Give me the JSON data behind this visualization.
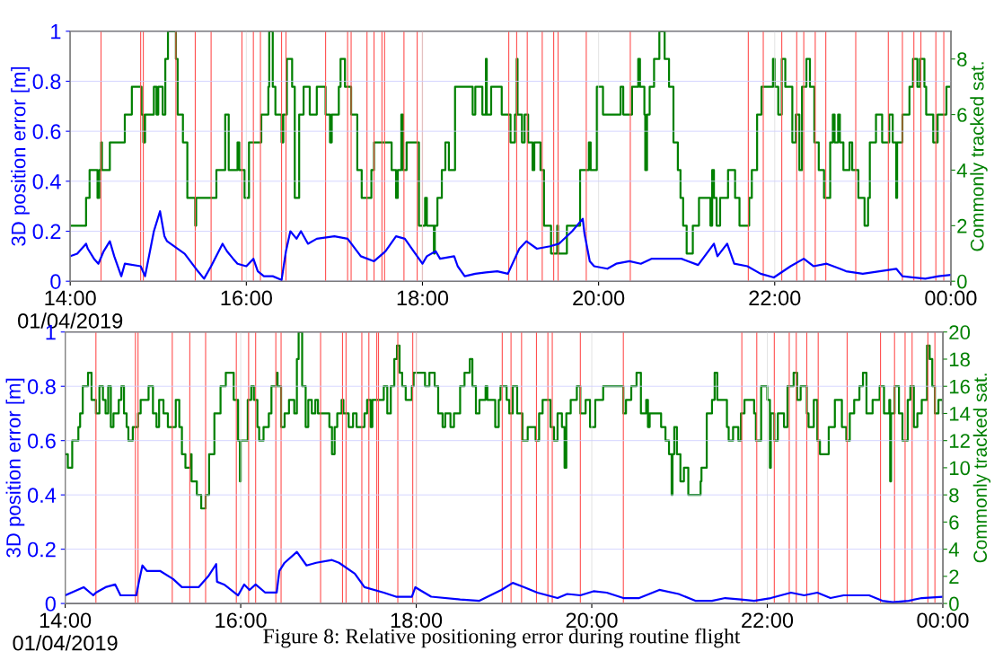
{
  "chart_data": [
    {
      "type": "line",
      "ylabel": "3D position error [m]",
      "y2label": "Commonly tracked sat.",
      "xlim": [
        14,
        24
      ],
      "xticks": [
        {
          "value": 14,
          "label": "14:00\n01/04/2019"
        },
        {
          "value": 16,
          "label": "16:00"
        },
        {
          "value": 18,
          "label": "18:00"
        },
        {
          "value": 20,
          "label": "20:00"
        },
        {
          "value": 22,
          "label": "22:00"
        },
        {
          "value": 24,
          "label": "00:00"
        }
      ],
      "ylim": [
        0,
        1
      ],
      "yticks": [
        0,
        0.2,
        0.4,
        0.6,
        0.8,
        1
      ],
      "y2lim": [
        0,
        9
      ],
      "y2ticks": [
        0,
        2,
        4,
        6,
        8
      ],
      "grid": true,
      "series": [
        {
          "color": "#0000ff",
          "x": [
            14.0,
            14.08,
            14.18,
            14.2,
            14.27,
            14.32,
            14.38,
            14.45,
            14.5,
            14.58,
            14.62,
            14.8,
            14.85,
            14.95,
            15.02,
            15.07,
            15.1,
            15.3,
            15.45,
            15.52,
            15.6,
            15.73,
            15.78,
            15.85,
            15.9,
            16.0,
            16.08,
            16.13,
            16.2,
            16.3,
            16.4,
            16.45,
            16.5,
            16.57,
            16.62,
            16.7,
            16.8,
            17.0,
            17.15,
            17.3,
            17.45,
            17.58,
            17.7,
            17.8,
            17.9,
            18.0,
            18.05,
            18.15,
            18.2,
            18.36,
            18.4,
            18.48,
            18.6,
            18.72,
            18.85,
            18.97,
            19.1,
            19.18,
            19.3,
            19.45,
            19.55,
            19.7,
            19.82,
            19.84,
            19.9,
            19.95,
            20.1,
            20.2,
            20.35,
            20.48,
            20.6,
            20.8,
            20.94,
            21.13,
            21.31,
            21.35,
            21.46,
            21.54,
            21.69,
            21.84,
            21.99,
            22.18,
            22.33,
            22.44,
            22.59,
            22.74,
            22.81,
            23.0,
            23.19,
            23.38,
            23.45,
            23.71,
            23.86,
            24.0
          ],
          "values": [
            0.1,
            0.11,
            0.15,
            0.13,
            0.09,
            0.07,
            0.12,
            0.16,
            0.1,
            0.02,
            0.07,
            0.06,
            0.02,
            0.2,
            0.28,
            0.18,
            0.16,
            0.11,
            0.04,
            0.01,
            0.06,
            0.15,
            0.12,
            0.09,
            0.07,
            0.06,
            0.09,
            0.04,
            0.02,
            0.02,
            0.005,
            0.12,
            0.2,
            0.17,
            0.2,
            0.15,
            0.17,
            0.18,
            0.17,
            0.1,
            0.08,
            0.12,
            0.18,
            0.17,
            0.12,
            0.07,
            0.1,
            0.12,
            0.09,
            0.1,
            0.06,
            0.02,
            0.03,
            0.035,
            0.04,
            0.03,
            0.13,
            0.16,
            0.13,
            0.14,
            0.15,
            0.2,
            0.25,
            0.19,
            0.08,
            0.06,
            0.05,
            0.07,
            0.08,
            0.07,
            0.09,
            0.09,
            0.09,
            0.065,
            0.15,
            0.1,
            0.15,
            0.07,
            0.06,
            0.03,
            0.015,
            0.06,
            0.09,
            0.06,
            0.07,
            0.05,
            0.04,
            0.03,
            0.04,
            0.05,
            0.02,
            0.01,
            0.02,
            0.025
          ]
        },
        {
          "type": "step",
          "axis": "y2",
          "color": "#008000",
          "x": [
            14.0,
            14.18,
            14.22,
            14.31,
            14.33,
            14.35,
            14.36,
            14.45,
            14.62,
            14.7,
            14.81,
            14.83,
            14.85,
            14.95,
            14.98,
            15.0,
            15.05,
            15.08,
            15.11,
            15.2,
            15.22,
            15.28,
            15.33,
            15.42,
            15.43,
            15.66,
            15.76,
            15.8,
            15.9,
            15.92,
            15.98,
            16.03,
            16.17,
            16.25,
            16.26,
            16.3,
            16.33,
            16.4,
            16.42,
            16.46,
            16.52,
            16.55,
            16.6,
            16.65,
            16.72,
            16.8,
            16.9,
            16.95,
            16.97,
            17.05,
            17.07,
            17.12,
            17.19,
            17.26,
            17.31,
            17.42,
            17.45,
            17.65,
            17.7,
            17.72,
            17.76,
            17.78,
            17.82,
            17.96,
            18.03,
            18.05,
            18.13,
            18.14,
            18.17,
            18.22,
            18.26,
            18.3,
            18.37,
            18.57,
            18.6,
            18.68,
            18.72,
            18.73,
            18.78,
            18.9,
            19.0,
            19.05,
            19.07,
            19.08,
            19.13,
            19.16,
            19.2,
            19.25,
            19.27,
            19.34,
            19.38,
            19.46,
            19.53,
            19.54,
            19.64,
            19.79,
            19.89,
            19.91,
            19.98,
            20.05,
            20.15,
            20.25,
            20.28,
            20.38,
            20.45,
            20.47,
            20.52,
            20.53,
            20.55,
            20.58,
            20.63,
            20.69,
            20.75,
            20.8,
            20.85,
            20.9,
            20.93,
            20.96,
            21.0,
            21.07,
            21.14,
            21.27,
            21.29,
            21.31,
            21.34,
            21.38,
            21.47,
            21.55,
            21.6,
            21.71,
            21.74,
            21.8,
            21.85,
            21.98,
            22.0,
            22.04,
            22.08,
            22.12,
            22.2,
            22.24,
            22.28,
            22.31,
            22.36,
            22.4,
            22.45,
            22.5,
            22.56,
            22.63,
            22.66,
            22.68,
            22.72,
            22.74,
            22.78,
            22.85,
            22.88,
            22.95,
            23.02,
            23.06,
            23.08,
            23.15,
            23.22,
            23.3,
            23.34,
            23.38,
            23.39,
            23.45,
            23.53,
            23.57,
            23.62,
            23.65,
            23.7,
            23.72,
            23.8,
            23.85,
            23.95,
            24.0
          ],
          "values": [
            2,
            3,
            4,
            3,
            4,
            5,
            4,
            5,
            6,
            7,
            6,
            5,
            6,
            7,
            6,
            7,
            6,
            8,
            9,
            8,
            6,
            5,
            3,
            2,
            3,
            4,
            6,
            4,
            5,
            4,
            3,
            5,
            6,
            7,
            9,
            7,
            6,
            5,
            6,
            8,
            7,
            3,
            6,
            7,
            6,
            7,
            6,
            5,
            6,
            7,
            8,
            7,
            6,
            4,
            3,
            4,
            5,
            4,
            3,
            4,
            6,
            4,
            5,
            2,
            3,
            2,
            1,
            2,
            3,
            4,
            5,
            4,
            7,
            6,
            7,
            6,
            8,
            6,
            7,
            6,
            5,
            6,
            8,
            6,
            5,
            6,
            5,
            4,
            5,
            4,
            2,
            1,
            2,
            1,
            2,
            4,
            5,
            4,
            7,
            6,
            6,
            7,
            6,
            7,
            8,
            7,
            6,
            4,
            6,
            7,
            8,
            9,
            8,
            7,
            5,
            4,
            3,
            2,
            1,
            2,
            3,
            2,
            4,
            3,
            2,
            3,
            4,
            3,
            2,
            3,
            4,
            6,
            7,
            8,
            7,
            6,
            8,
            7,
            5,
            6,
            4,
            7,
            8,
            7,
            5,
            4,
            3,
            5,
            6,
            5,
            6,
            5,
            4,
            5,
            4,
            3,
            2,
            3,
            5,
            6,
            5,
            6,
            5,
            3,
            5,
            6,
            7,
            8,
            7,
            8,
            7,
            6,
            5,
            6,
            7,
            7
          ]
        }
      ],
      "ref_lines": [
        {
          "axis": "x",
          "value": 14.35,
          "color": "#ff5050"
        },
        {
          "axis": "x",
          "value": 14.8,
          "color": "#ff5050"
        },
        {
          "axis": "x",
          "value": 14.83,
          "color": "#ff5050"
        },
        {
          "axis": "x",
          "value": 15.2,
          "color": "#ff5050"
        },
        {
          "axis": "x",
          "value": 15.42,
          "color": "#ff5050"
        },
        {
          "axis": "x",
          "value": 15.6,
          "color": "#ff5050"
        },
        {
          "axis": "x",
          "value": 15.95,
          "color": "#ff5050"
        },
        {
          "axis": "x",
          "value": 16.08,
          "color": "#ff5050"
        },
        {
          "axis": "x",
          "value": 16.16,
          "color": "#ff5050"
        },
        {
          "axis": "x",
          "value": 16.4,
          "color": "#ff5050"
        },
        {
          "axis": "x",
          "value": 16.45,
          "color": "#ff5050"
        },
        {
          "axis": "x",
          "value": 16.9,
          "color": "#ff5050"
        },
        {
          "axis": "x",
          "value": 17.15,
          "color": "#ff5050"
        },
        {
          "axis": "x",
          "value": 17.19,
          "color": "#ff5050"
        },
        {
          "axis": "x",
          "value": 17.37,
          "color": "#ff5050"
        },
        {
          "axis": "x",
          "value": 17.45,
          "color": "#ff5050"
        },
        {
          "axis": "x",
          "value": 17.54,
          "color": "#ff5050"
        },
        {
          "axis": "x",
          "value": 17.57,
          "color": "#ff5050"
        },
        {
          "axis": "x",
          "value": 17.79,
          "color": "#ff5050"
        },
        {
          "axis": "x",
          "value": 17.94,
          "color": "#ff5050"
        },
        {
          "axis": "x",
          "value": 18.0,
          "color": "#ff5050"
        },
        {
          "axis": "x",
          "value": 18.98,
          "color": "#ff5050"
        },
        {
          "axis": "x",
          "value": 19.07,
          "color": "#ff5050"
        },
        {
          "axis": "x",
          "value": 19.19,
          "color": "#ff5050"
        },
        {
          "axis": "x",
          "value": 19.36,
          "color": "#ff5050"
        },
        {
          "axis": "x",
          "value": 19.49,
          "color": "#ff5050"
        },
        {
          "axis": "x",
          "value": 19.54,
          "color": "#ff5050"
        },
        {
          "axis": "x",
          "value": 19.86,
          "color": "#ff5050"
        },
        {
          "axis": "x",
          "value": 20.36,
          "color": "#ff5050"
        },
        {
          "axis": "x",
          "value": 21.7,
          "color": "#ff5050"
        },
        {
          "axis": "x",
          "value": 21.87,
          "color": "#ff5050"
        },
        {
          "axis": "x",
          "value": 22.08,
          "color": "#ff5050"
        },
        {
          "axis": "x",
          "value": 22.25,
          "color": "#ff5050"
        },
        {
          "axis": "x",
          "value": 22.33,
          "color": "#ff5050"
        },
        {
          "axis": "x",
          "value": 22.46,
          "color": "#ff5050"
        },
        {
          "axis": "x",
          "value": 22.58,
          "color": "#ff5050"
        },
        {
          "axis": "x",
          "value": 22.92,
          "color": "#ff5050"
        },
        {
          "axis": "x",
          "value": 23.29,
          "color": "#ff5050"
        },
        {
          "axis": "x",
          "value": 23.45,
          "color": "#ff5050"
        },
        {
          "axis": "x",
          "value": 23.58,
          "color": "#ff5050"
        },
        {
          "axis": "x",
          "value": 23.66,
          "color": "#ff5050"
        },
        {
          "axis": "x",
          "value": 23.83,
          "color": "#ff5050"
        },
        {
          "axis": "x",
          "value": 23.92,
          "color": "#ff5050"
        }
      ]
    },
    {
      "type": "line",
      "ylabel": "3D position error [m]",
      "y2label": "Commonly tracked sat.",
      "xlim": [
        14,
        24
      ],
      "xticks": [
        {
          "value": 14,
          "label": "14:00\n01/04/2019"
        },
        {
          "value": 16,
          "label": "16:00"
        },
        {
          "value": 18,
          "label": "18:00"
        },
        {
          "value": 20,
          "label": "20:00"
        },
        {
          "value": 22,
          "label": "22:00"
        },
        {
          "value": 24,
          "label": "00:00"
        }
      ],
      "ylim": [
        0,
        1
      ],
      "yticks": [
        0,
        0.2,
        0.4,
        0.6,
        0.8,
        1
      ],
      "y2lim": [
        0,
        20
      ],
      "y2ticks": [
        0,
        2,
        4,
        6,
        8,
        10,
        12,
        14,
        16,
        18,
        20
      ],
      "grid": true,
      "annotations": [
        "Figure 8: Relative positioning error during routine flight"
      ],
      "series": [
        {
          "color": "#0000ff",
          "x": [
            14.0,
            14.21,
            14.32,
            14.35,
            14.46,
            14.57,
            14.63,
            14.81,
            14.84,
            14.88,
            14.93,
            15.08,
            15.23,
            15.33,
            15.52,
            15.63,
            15.72,
            15.73,
            15.81,
            15.97,
            16.04,
            16.1,
            16.17,
            16.28,
            16.41,
            16.44,
            16.5,
            16.64,
            16.75,
            16.86,
            17.04,
            17.12,
            17.3,
            17.41,
            17.63,
            17.77,
            17.95,
            17.99,
            18.04,
            18.17,
            18.5,
            18.72,
            18.97,
            19.1,
            19.23,
            19.38,
            19.61,
            19.72,
            19.87,
            20.02,
            20.17,
            20.36,
            20.54,
            20.77,
            20.99,
            21.18,
            21.37,
            21.52,
            21.7,
            21.85,
            22.04,
            22.27,
            22.42,
            22.57,
            22.72,
            22.87,
            23.16,
            23.31,
            23.43,
            23.61,
            23.76,
            24.0
          ],
          "values": [
            0.03,
            0.06,
            0.03,
            0.04,
            0.06,
            0.07,
            0.03,
            0.03,
            0.08,
            0.14,
            0.12,
            0.12,
            0.09,
            0.06,
            0.06,
            0.1,
            0.145,
            0.08,
            0.07,
            0.03,
            0.07,
            0.05,
            0.07,
            0.04,
            0.04,
            0.12,
            0.15,
            0.19,
            0.14,
            0.15,
            0.16,
            0.15,
            0.11,
            0.06,
            0.04,
            0.025,
            0.025,
            0.06,
            0.05,
            0.025,
            0.015,
            0.01,
            0.05,
            0.076,
            0.06,
            0.04,
            0.02,
            0.035,
            0.03,
            0.045,
            0.04,
            0.02,
            0.02,
            0.05,
            0.035,
            0.01,
            0.01,
            0.02,
            0.015,
            0.01,
            0.02,
            0.04,
            0.03,
            0.04,
            0.02,
            0.03,
            0.03,
            0.01,
            0.005,
            0.01,
            0.02,
            0.025
          ]
        },
        {
          "type": "step",
          "axis": "y2",
          "color": "#008000",
          "x": [
            14.0,
            14.03,
            14.08,
            14.15,
            14.17,
            14.2,
            14.26,
            14.3,
            14.35,
            14.39,
            14.43,
            14.46,
            14.49,
            14.52,
            14.55,
            14.61,
            14.64,
            14.67,
            14.7,
            14.72,
            14.77,
            14.83,
            14.86,
            14.95,
            15.0,
            15.04,
            15.07,
            15.12,
            15.17,
            15.26,
            15.3,
            15.33,
            15.37,
            15.43,
            15.44,
            15.5,
            15.55,
            15.6,
            15.64,
            15.7,
            15.77,
            15.83,
            15.92,
            15.97,
            15.99,
            16.0,
            16.08,
            16.12,
            16.15,
            16.19,
            16.21,
            16.26,
            16.32,
            16.35,
            16.41,
            16.42,
            16.46,
            16.5,
            16.55,
            16.61,
            16.64,
            16.66,
            16.7,
            16.74,
            16.77,
            16.81,
            16.85,
            16.88,
            17.01,
            17.04,
            17.07,
            17.1,
            17.15,
            17.17,
            17.23,
            17.28,
            17.32,
            17.41,
            17.44,
            17.48,
            17.5,
            17.63,
            17.67,
            17.71,
            17.75,
            17.78,
            17.81,
            17.84,
            17.88,
            17.95,
            17.97,
            18.1,
            18.15,
            18.21,
            18.25,
            18.3,
            18.33,
            18.39,
            18.43,
            18.5,
            18.55,
            18.61,
            18.64,
            18.68,
            18.72,
            18.79,
            18.81,
            18.9,
            18.94,
            18.96,
            19.03,
            19.06,
            19.1,
            19.15,
            19.21,
            19.27,
            19.36,
            19.4,
            19.44,
            19.53,
            19.57,
            19.61,
            19.66,
            19.69,
            19.71,
            19.76,
            19.83,
            19.87,
            19.93,
            19.98,
            20.04,
            20.13,
            20.36,
            20.39,
            20.45,
            20.51,
            20.56,
            20.62,
            20.64,
            20.66,
            20.79,
            20.84,
            20.88,
            20.91,
            20.92,
            20.94,
            20.97,
            21.01,
            21.05,
            21.1,
            21.24,
            21.25,
            21.31,
            21.37,
            21.4,
            21.43,
            21.54,
            21.56,
            21.61,
            21.67,
            21.7,
            21.74,
            21.85,
            21.87,
            21.93,
            22.0,
            22.03,
            22.04,
            22.08,
            22.12,
            22.19,
            22.23,
            22.3,
            22.34,
            22.38,
            22.45,
            22.47,
            22.53,
            22.57,
            22.6,
            22.7,
            22.77,
            22.85,
            22.9,
            22.94,
            22.99,
            23.05,
            23.09,
            23.13,
            23.2,
            23.28,
            23.33,
            23.39,
            23.4,
            23.41,
            23.45,
            23.5,
            23.54,
            23.6,
            23.63,
            23.67,
            23.71,
            23.76,
            23.82,
            23.85,
            23.88,
            23.91,
            23.95,
            24.0
          ],
          "values": [
            11,
            10,
            12,
            13,
            14,
            16,
            17,
            15,
            14,
            16,
            15,
            14,
            16,
            13,
            14,
            15,
            16,
            14,
            13,
            12,
            13,
            14,
            15,
            16,
            14,
            13,
            15,
            14,
            13,
            15,
            13,
            11,
            10,
            11,
            9,
            8,
            7,
            8,
            11,
            14,
            16,
            17,
            15,
            12,
            9,
            12,
            15,
            16,
            15,
            13,
            12,
            13,
            14,
            16,
            17,
            16,
            13,
            14,
            15,
            14,
            18,
            20,
            16,
            13,
            15,
            14,
            15,
            14,
            13,
            11,
            13,
            14,
            15,
            14,
            13,
            14,
            13,
            14,
            15,
            13,
            15,
            16,
            14,
            16,
            18,
            19,
            17,
            16,
            15,
            16,
            17,
            16,
            17,
            16,
            14,
            13,
            14,
            13,
            14,
            16,
            17,
            18,
            16,
            14,
            15,
            16,
            15,
            13,
            15,
            16,
            15,
            14,
            16,
            14,
            12,
            13,
            12,
            14,
            15,
            13,
            12,
            14,
            13,
            10,
            14,
            15,
            16,
            14,
            15,
            13,
            15,
            16,
            14,
            15,
            16,
            17,
            14,
            15,
            13,
            14,
            13,
            12,
            11,
            8,
            11,
            13,
            11,
            9,
            10,
            8,
            9,
            10,
            14,
            15,
            17,
            15,
            13,
            12,
            13,
            12,
            14,
            15,
            14,
            12,
            16,
            15,
            10,
            14,
            12,
            14,
            13,
            16,
            17,
            15,
            16,
            14,
            13,
            15,
            12,
            11,
            13,
            15,
            13,
            12,
            14,
            15,
            16,
            17,
            14,
            15,
            16,
            14,
            15,
            9,
            14,
            16,
            14,
            12,
            15,
            16,
            13,
            14,
            15,
            19,
            18,
            16,
            14,
            15,
            14
          ]
        }
      ],
      "ref_lines": [
        {
          "axis": "x",
          "value": 14.35,
          "color": "#ff5050"
        },
        {
          "axis": "x",
          "value": 14.8,
          "color": "#ff5050"
        },
        {
          "axis": "x",
          "value": 14.83,
          "color": "#ff5050"
        },
        {
          "axis": "x",
          "value": 15.22,
          "color": "#ff5050"
        },
        {
          "axis": "x",
          "value": 15.42,
          "color": "#ff5050"
        },
        {
          "axis": "x",
          "value": 15.6,
          "color": "#ff5050"
        },
        {
          "axis": "x",
          "value": 15.95,
          "color": "#ff5050"
        },
        {
          "axis": "x",
          "value": 16.09,
          "color": "#ff5050"
        },
        {
          "axis": "x",
          "value": 16.17,
          "color": "#ff5050"
        },
        {
          "axis": "x",
          "value": 16.4,
          "color": "#ff5050"
        },
        {
          "axis": "x",
          "value": 16.46,
          "color": "#ff5050"
        },
        {
          "axis": "x",
          "value": 16.91,
          "color": "#ff5050"
        },
        {
          "axis": "x",
          "value": 17.16,
          "color": "#ff5050"
        },
        {
          "axis": "x",
          "value": 17.2,
          "color": "#ff5050"
        },
        {
          "axis": "x",
          "value": 17.38,
          "color": "#ff5050"
        },
        {
          "axis": "x",
          "value": 17.46,
          "color": "#ff5050"
        },
        {
          "axis": "x",
          "value": 17.55,
          "color": "#ff5050"
        },
        {
          "axis": "x",
          "value": 17.57,
          "color": "#ff5050"
        },
        {
          "axis": "x",
          "value": 17.79,
          "color": "#ff5050"
        },
        {
          "axis": "x",
          "value": 17.96,
          "color": "#ff5050"
        },
        {
          "axis": "x",
          "value": 18.0,
          "color": "#ff5050"
        },
        {
          "axis": "x",
          "value": 18.98,
          "color": "#ff5050"
        },
        {
          "axis": "x",
          "value": 19.08,
          "color": "#ff5050"
        },
        {
          "axis": "x",
          "value": 19.2,
          "color": "#ff5050"
        },
        {
          "axis": "x",
          "value": 19.37,
          "color": "#ff5050"
        },
        {
          "axis": "x",
          "value": 19.5,
          "color": "#ff5050"
        },
        {
          "axis": "x",
          "value": 19.55,
          "color": "#ff5050"
        },
        {
          "axis": "x",
          "value": 19.87,
          "color": "#ff5050"
        },
        {
          "axis": "x",
          "value": 20.36,
          "color": "#ff5050"
        },
        {
          "axis": "x",
          "value": 21.71,
          "color": "#ff5050"
        },
        {
          "axis": "x",
          "value": 21.88,
          "color": "#ff5050"
        },
        {
          "axis": "x",
          "value": 22.08,
          "color": "#ff5050"
        },
        {
          "axis": "x",
          "value": 22.25,
          "color": "#ff5050"
        },
        {
          "axis": "x",
          "value": 22.33,
          "color": "#ff5050"
        },
        {
          "axis": "x",
          "value": 22.45,
          "color": "#ff5050"
        },
        {
          "axis": "x",
          "value": 22.58,
          "color": "#ff5050"
        },
        {
          "axis": "x",
          "value": 22.91,
          "color": "#ff5050"
        },
        {
          "axis": "x",
          "value": 23.29,
          "color": "#ff5050"
        },
        {
          "axis": "x",
          "value": 23.45,
          "color": "#ff5050"
        },
        {
          "axis": "x",
          "value": 23.57,
          "color": "#ff5050"
        },
        {
          "axis": "x",
          "value": 23.65,
          "color": "#ff5050"
        },
        {
          "axis": "x",
          "value": 23.83,
          "color": "#ff5050"
        },
        {
          "axis": "x",
          "value": 23.91,
          "color": "#ff5050"
        }
      ]
    }
  ]
}
